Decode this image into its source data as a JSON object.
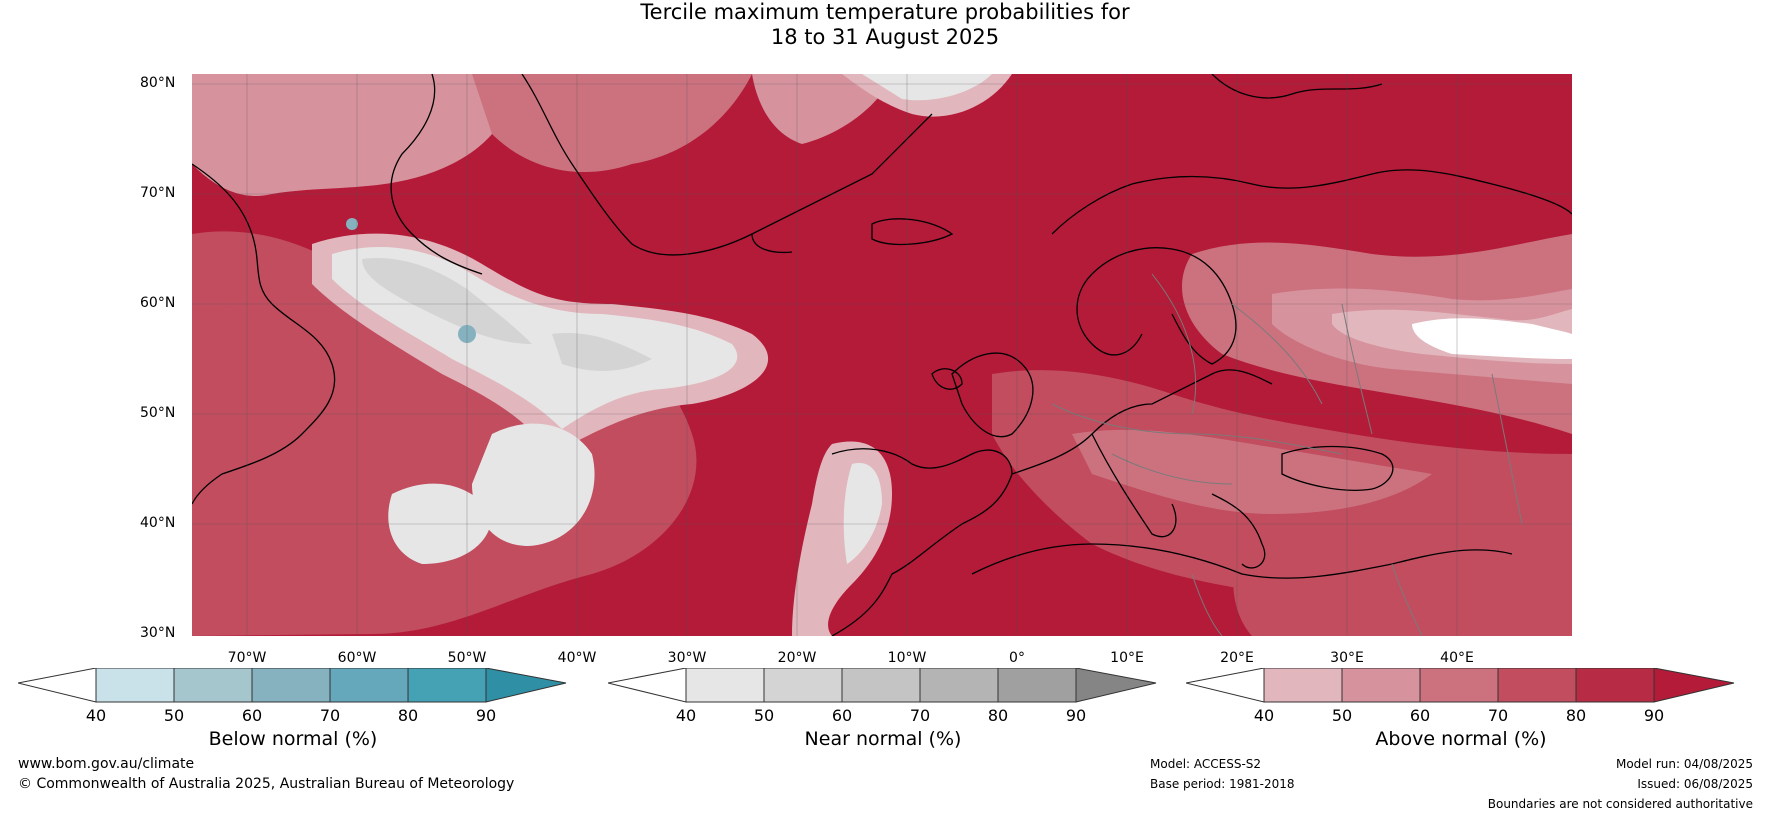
{
  "title_line1": "Tercile maximum temperature probabilities for",
  "title_line2": "18 to 31 August 2025",
  "lat_labels": [
    "80°N",
    "70°N",
    "60°N",
    "50°N",
    "40°N",
    "30°N"
  ],
  "lon_labels": [
    "70°W",
    "60°W",
    "50°W",
    "40°W",
    "30°W",
    "20°W",
    "10°W",
    "0°",
    "10°E",
    "20°E",
    "30°E",
    "40°E"
  ],
  "colorbars": [
    {
      "title": "Below normal (%)",
      "ticks": [
        "40",
        "50",
        "60",
        "70",
        "80",
        "90"
      ],
      "colors": [
        "#ffffff",
        "#c9e2ea",
        "#a6c6ce",
        "#86b2c0",
        "#65a8bc",
        "#45a1b4",
        "#2f8fa4"
      ]
    },
    {
      "title": "Near normal (%)",
      "ticks": [
        "40",
        "50",
        "60",
        "70",
        "80",
        "90"
      ],
      "colors": [
        "#ffffff",
        "#e6e6e6",
        "#d4d4d4",
        "#c4c4c4",
        "#b4b4b4",
        "#a0a0a0",
        "#858585"
      ]
    },
    {
      "title": "Above normal (%)",
      "ticks": [
        "40",
        "50",
        "60",
        "70",
        "80",
        "90"
      ],
      "colors": [
        "#ffffff",
        "#e2b6bd",
        "#d6939d",
        "#cc727f",
        "#c14d5f",
        "#b72c44",
        "#b31b38"
      ]
    }
  ],
  "footer": {
    "site": "www.bom.gov.au/climate",
    "copyright": "© Commonwealth of Australia 2025, Australian Bureau of Meteorology",
    "model": "Model: ACCESS-S2",
    "base_period": "Base period: 1981-2018",
    "model_run": "Model run: 04/08/2025",
    "issued": "Issued: 06/08/2025",
    "disclaimer": "Boundaries are not considered authoritative"
  }
}
